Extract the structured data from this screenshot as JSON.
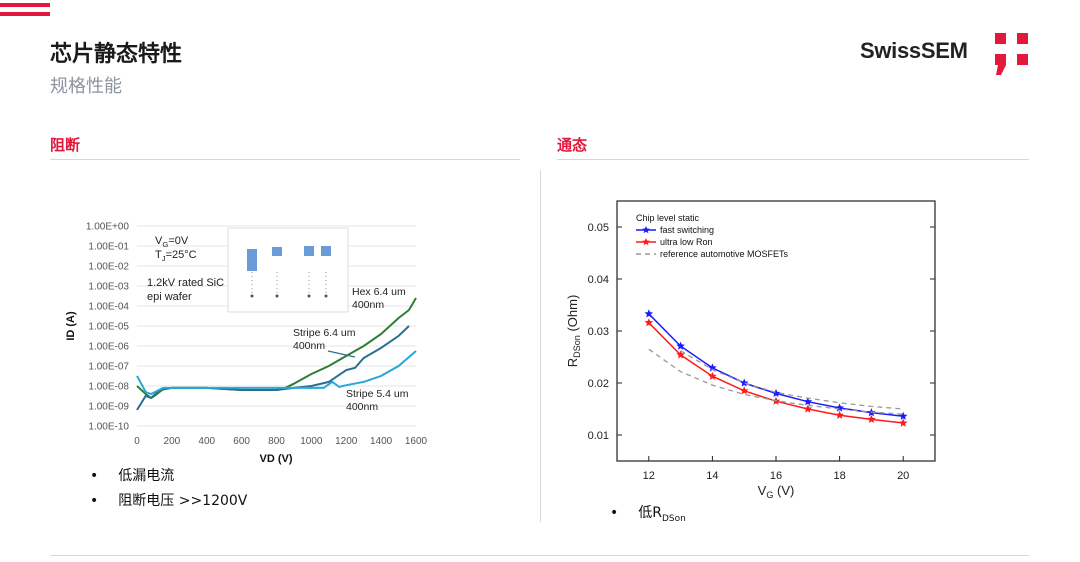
{
  "header": {
    "title": "芯片静态特性",
    "subtitle": "规格性能",
    "logo_text": "SwissSEM",
    "accent": "#e3183c"
  },
  "left": {
    "section": "阻断",
    "bullets": [
      "低漏电流",
      "阻断电压 >>1200V"
    ]
  },
  "right": {
    "section": "通态",
    "bullets": [
      {
        "prefix": "低",
        "main": "R",
        "sub": "DSon"
      }
    ]
  },
  "chart_data": [
    {
      "type": "line",
      "xlabel": "VD (V)",
      "ylabel": "ID (A)",
      "xlim": [
        0,
        1600
      ],
      "ylim": [
        1e-10,
        1
      ],
      "yscale": "log",
      "xticks": [
        "0",
        "200",
        "400",
        "600",
        "800",
        "1000",
        "1200",
        "1400",
        "1600"
      ],
      "yticks": [
        "1.00E+00",
        "1.00E-01",
        "1.00E-02",
        "1.00E-03",
        "1.00E-04",
        "1.00E-05",
        "1.00E-06",
        "1.00E-07",
        "1.00E-08",
        "1.00E-09",
        "1.00E-10"
      ],
      "annotations": {
        "vg": "V",
        "vg_sub": "G",
        "vg_rest": "=0V",
        "tj": "T",
        "tj_sub": "J",
        "tj_rest": "=25°C",
        "wafer1": "1.2kV rated SiC",
        "wafer2": "epi wafer"
      },
      "series": [
        {
          "name": "Hex 6.4 um 400nm",
          "label1": "Hex 6.4 um",
          "label2": "400nm",
          "color": "#2e7d32",
          "x": [
            0,
            50,
            80,
            100,
            150,
            200,
            400,
            600,
            800,
            850,
            900,
            1000,
            1100,
            1200,
            1300,
            1400,
            1500,
            1560,
            1600
          ],
          "y": [
            1e-08,
            4e-09,
            2.5e-09,
            3.2e-09,
            7e-09,
            8e-09,
            8e-09,
            6.3e-09,
            6.3e-09,
            8e-09,
            1.3e-08,
            4e-08,
            1e-07,
            3.2e-07,
            1e-06,
            4e-06,
            2.5e-05,
            6.3e-05,
            0.00025
          ]
        },
        {
          "name": "Stripe 6.4 um 400nm",
          "label1": "Stripe 6.4 um",
          "label2": "400nm",
          "color": "#2a6f8f",
          "x": [
            0,
            50,
            80,
            130,
            200,
            400,
            600,
            800,
            900,
            1000,
            1100,
            1200,
            1250,
            1300,
            1400,
            1500,
            1560
          ],
          "y": [
            6.3e-10,
            3.2e-09,
            2.5e-09,
            6.3e-09,
            8e-09,
            8e-09,
            6.3e-09,
            6.3e-09,
            8e-09,
            1e-08,
            1.6e-08,
            6.3e-08,
            8e-08,
            2.5e-07,
            8e-07,
            3.2e-06,
            1e-05
          ]
        },
        {
          "name": "Stripe 5.4 um 400nm",
          "label1": "Stripe 5.4 um",
          "label2": "400nm",
          "color": "#29a8d8",
          "x": [
            0,
            50,
            80,
            150,
            400,
            800,
            1000,
            1070,
            1120,
            1160,
            1200,
            1300,
            1400,
            1500,
            1600
          ],
          "y": [
            3.2e-08,
            5e-09,
            4e-09,
            8e-09,
            8e-09,
            8e-09,
            8e-09,
            8e-09,
            1.6e-08,
            9e-09,
            1.1e-08,
            1.6e-08,
            3.2e-08,
            1e-07,
            5.6e-07
          ]
        }
      ]
    },
    {
      "type": "line",
      "xlabel": "V",
      "xlabel_sub": "G",
      "xlabel_rest": " (V)",
      "ylabel": "R",
      "ylabel_sub": "DSon",
      "ylabel_rest": " (Ohm)",
      "xlim": [
        11,
        21
      ],
      "ylim": [
        0.005,
        0.055
      ],
      "xticks": [
        "12",
        "14",
        "16",
        "18",
        "20"
      ],
      "yticks": [
        "0.01",
        "0.02",
        "0.03",
        "0.04",
        "0.05"
      ],
      "legend_title": "Chip level static",
      "legend_position": "top-left",
      "x": [
        12,
        13,
        14,
        15,
        16,
        17,
        18,
        19,
        20
      ],
      "series": [
        {
          "name": "fast switching",
          "color": "#1a1aff",
          "marker": "star",
          "y": [
            0.0333,
            0.0271,
            0.0229,
            0.02,
            0.018,
            0.0164,
            0.0152,
            0.0143,
            0.0136
          ]
        },
        {
          "name": "ultra low Ron",
          "color": "#ff1a1a",
          "marker": "star",
          "y": [
            0.0316,
            0.0254,
            0.0213,
            0.0185,
            0.0165,
            0.015,
            0.0138,
            0.013,
            0.0123
          ]
        },
        {
          "name": "reference automotive MOSFETs",
          "color": "#999999",
          "dash": true,
          "y": [
            0.0265,
            0.0222,
            0.0196,
            0.0178,
            0.0166,
            0.0157,
            0.015,
            0.0144,
            0.014
          ]
        },
        {
          "name": "",
          "color": "#999999",
          "dash": true,
          "legend": false,
          "y": [
            null,
            0.0262,
            0.0226,
            0.02,
            0.0182,
            0.0171,
            0.0162,
            0.0155,
            0.015
          ]
        }
      ]
    }
  ]
}
